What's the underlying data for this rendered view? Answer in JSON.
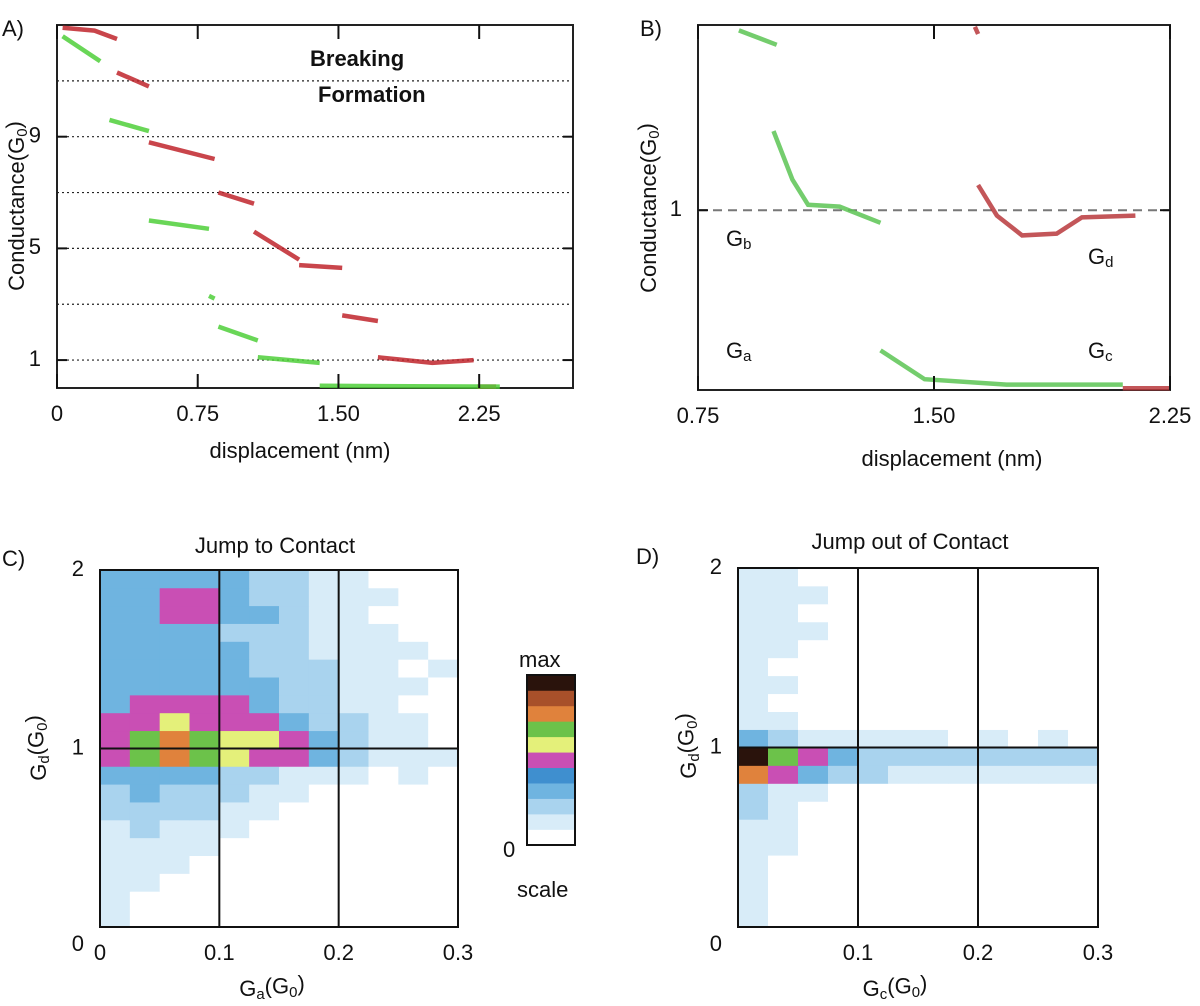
{
  "chart_data": [
    {
      "type": "line",
      "panel": "A)",
      "xlabel": "displacement (nm)",
      "ylabel": [
        "Conductance(G",
        "0",
        ")"
      ],
      "xlim": [
        0,
        2.75
      ],
      "ylim": [
        0,
        13
      ],
      "xticks": [
        0,
        0.75,
        {
          "value": 1.5,
          "label": "1.50"
        },
        2.25
      ],
      "yticks": [
        1,
        5,
        9
      ],
      "grid_lines": [
        1,
        3,
        5,
        7,
        9,
        11
      ],
      "grid_style": "dotted",
      "legend": true,
      "series": [
        {
          "name": "Breaking",
          "color": "#c0252b",
          "x": [
            0.03,
            0.2,
            0.32,
            null,
            0.32,
            0.49,
            null,
            0.49,
            0.84,
            null,
            0.86,
            1.05,
            null,
            1.05,
            1.29,
            null,
            1.29,
            1.52,
            null,
            1.52,
            1.71,
            null,
            1.71,
            2.0,
            2.22,
            null,
            2.24,
            2.34
          ],
          "values": [
            12.9,
            12.8,
            12.5,
            null,
            11.3,
            10.8,
            null,
            8.8,
            8.2,
            null,
            7.0,
            6.6,
            null,
            5.6,
            4.6,
            null,
            4.4,
            4.3,
            null,
            2.6,
            2.4,
            null,
            1.1,
            0.9,
            1.0,
            null,
            0.05,
            0.05
          ]
        },
        {
          "name": "Formation",
          "color": "#4fcf3a",
          "x": [
            0.03,
            0.23,
            null,
            0.28,
            0.49,
            null,
            0.49,
            0.81,
            null,
            0.81,
            0.84,
            null,
            0.86,
            1.07,
            null,
            1.07,
            1.4,
            null,
            1.4,
            2.36
          ],
          "values": [
            12.6,
            11.7,
            null,
            9.6,
            9.2,
            null,
            6.0,
            5.7,
            null,
            3.3,
            3.2,
            null,
            2.2,
            1.7,
            null,
            1.1,
            0.9,
            null,
            0.08,
            0.05
          ]
        }
      ]
    },
    {
      "type": "line",
      "panel": "B)",
      "xlabel": "displacement (nm)",
      "ylabel": [
        "Conductance(G",
        "0",
        ")"
      ],
      "xlim": [
        0.75,
        2.25
      ],
      "ylim": [
        0,
        2.03
      ],
      "xticks": [
        0.75,
        {
          "value": 1.5,
          "label": "1.50"
        },
        2.25
      ],
      "yticks": [
        1
      ],
      "grid_lines": [
        1
      ],
      "grid_style": "dashed",
      "legend": false,
      "annotations": [
        [
          "G",
          "b"
        ],
        [
          "G",
          "a"
        ],
        [
          "G",
          "d"
        ],
        [
          "G",
          "c"
        ]
      ],
      "series": [
        {
          "color": "#5cc453",
          "x": [
            0.88,
            1.0,
            null,
            0.99,
            1.05,
            1.1,
            1.2,
            1.33,
            null,
            1.33,
            1.47,
            1.73,
            2.1
          ],
          "values": [
            2.0,
            1.92,
            null,
            1.44,
            1.17,
            1.03,
            1.02,
            0.93,
            null,
            0.22,
            0.06,
            0.03,
            0.03
          ]
        },
        {
          "color": "#b8383c",
          "x": [
            1.63,
            1.64,
            null,
            1.64,
            1.7,
            1.78,
            1.89,
            1.97,
            2.14,
            null,
            2.1,
            2.25
          ],
          "values": [
            2.02,
            1.98,
            null,
            1.14,
            0.97,
            0.86,
            0.87,
            0.96,
            0.97,
            null,
            0.01,
            0.01
          ]
        }
      ]
    },
    {
      "type": "heatmap",
      "panel": "C)",
      "title": "Jump to Contact",
      "title_color": "#2b8c1b",
      "xlabel": [
        "G",
        "a",
        "(G",
        "0",
        ")"
      ],
      "ylabel": [
        "G",
        "d",
        "(G",
        "0",
        ")"
      ],
      "xlim": [
        0,
        0.3
      ],
      "ylim": [
        0,
        2
      ],
      "xticks": [
        0,
        0.1,
        0.2,
        0.3
      ],
      "yticks": [
        0,
        1,
        2
      ],
      "x_bins": [
        0,
        0.025,
        0.05,
        0.075,
        0.1,
        0.125,
        0.15,
        0.175,
        0.2,
        0.225,
        0.25,
        0.275,
        0.3
      ],
      "y_bins": [
        0,
        0.1,
        0.2,
        0.3,
        0.4,
        0.5,
        0.6,
        0.7,
        0.8,
        0.9,
        1.0,
        1.1,
        1.2,
        1.3,
        1.4,
        1.5,
        1.6,
        1.7,
        1.8,
        1.9,
        2.0
      ],
      "z": [
        [
          1,
          0,
          0,
          0,
          0,
          0,
          0,
          0,
          0,
          0,
          0,
          0
        ],
        [
          1,
          0,
          0,
          0,
          0,
          0,
          0,
          0,
          0,
          0,
          0,
          0
        ],
        [
          1,
          1,
          0,
          0,
          0,
          0,
          0,
          0,
          0,
          0,
          0,
          0
        ],
        [
          1,
          1,
          1,
          0,
          0,
          0,
          0,
          0,
          0,
          0,
          0,
          0
        ],
        [
          1,
          1,
          1,
          1,
          0,
          0,
          0,
          0,
          0,
          0,
          0,
          0
        ],
        [
          1,
          2,
          1,
          1,
          1,
          0,
          0,
          0,
          0,
          0,
          0,
          0
        ],
        [
          2,
          2,
          2,
          2,
          1,
          1,
          0,
          0,
          0,
          0,
          0,
          0
        ],
        [
          2,
          3,
          2,
          2,
          2,
          1,
          1,
          0,
          0,
          0,
          0,
          0
        ],
        [
          3,
          3,
          3,
          3,
          2,
          2,
          1,
          1,
          1,
          0,
          1,
          0
        ],
        [
          5,
          7,
          8,
          7,
          6,
          5,
          5,
          3,
          2,
          1,
          1,
          1
        ],
        [
          5,
          7,
          8,
          7,
          6,
          6,
          5,
          3,
          2,
          1,
          1,
          0
        ],
        [
          5,
          5,
          6,
          5,
          5,
          5,
          3,
          2,
          2,
          1,
          1,
          0
        ],
        [
          3,
          5,
          5,
          5,
          5,
          3,
          2,
          2,
          1,
          1,
          0,
          0
        ],
        [
          3,
          3,
          3,
          3,
          3,
          3,
          2,
          2,
          1,
          1,
          1,
          0
        ],
        [
          3,
          3,
          3,
          3,
          3,
          2,
          2,
          2,
          1,
          1,
          0,
          1
        ],
        [
          3,
          3,
          3,
          3,
          3,
          2,
          2,
          1,
          1,
          1,
          1,
          0
        ],
        [
          3,
          3,
          3,
          3,
          2,
          2,
          2,
          1,
          1,
          1,
          0,
          0
        ],
        [
          3,
          3,
          5,
          5,
          3,
          3,
          2,
          1,
          1,
          0,
          0,
          0
        ],
        [
          3,
          3,
          5,
          5,
          3,
          2,
          2,
          1,
          1,
          1,
          0,
          0
        ],
        [
          3,
          3,
          3,
          3,
          3,
          2,
          2,
          1,
          1,
          0,
          0,
          0
        ]
      ],
      "zlim": [
        0,
        {
          "value": 10,
          "label": "max"
        }
      ],
      "colorbar_label": "scale",
      "colorscale": [
        "#ffffff",
        "#d8ecf8",
        "#a9d3ee",
        "#6fb4e0",
        "#3f8fcf",
        "#c94fb4",
        "#e4f07a",
        "#6cc24a",
        "#e0823c",
        "#a8502a",
        "#2a130c"
      ]
    },
    {
      "type": "heatmap",
      "panel": "D)",
      "title": "Jump out of Contact",
      "title_color": "#e8201a",
      "xlabel": [
        "G",
        "c",
        "(G",
        "0",
        ")"
      ],
      "ylabel": [
        "G",
        "d",
        "(G",
        "0",
        ")"
      ],
      "xlim": [
        0,
        0.3
      ],
      "ylim": [
        0,
        2
      ],
      "xticks": [
        0.1,
        0.2,
        0.3
      ],
      "yticks": [
        0,
        1,
        2
      ],
      "x_bins": [
        0,
        0.025,
        0.05,
        0.075,
        0.1,
        0.125,
        0.15,
        0.175,
        0.2,
        0.225,
        0.25,
        0.275,
        0.3
      ],
      "y_bins": [
        0,
        0.1,
        0.2,
        0.3,
        0.4,
        0.5,
        0.6,
        0.7,
        0.8,
        0.9,
        1.0,
        1.1,
        1.2,
        1.3,
        1.4,
        1.5,
        1.6,
        1.7,
        1.8,
        1.9,
        2.0
      ],
      "z": [
        [
          1,
          0,
          0,
          0,
          0,
          0,
          0,
          0,
          0,
          0,
          0,
          0
        ],
        [
          1,
          0,
          0,
          0,
          0,
          0,
          0,
          0,
          0,
          0,
          0,
          0
        ],
        [
          1,
          0,
          0,
          0,
          0,
          0,
          0,
          0,
          0,
          0,
          0,
          0
        ],
        [
          1,
          0,
          0,
          0,
          0,
          0,
          0,
          0,
          0,
          0,
          0,
          0
        ],
        [
          1,
          1,
          0,
          0,
          0,
          0,
          0,
          0,
          0,
          0,
          0,
          0
        ],
        [
          1,
          1,
          0,
          0,
          0,
          0,
          0,
          0,
          0,
          0,
          0,
          0
        ],
        [
          2,
          1,
          0,
          0,
          0,
          0,
          0,
          0,
          0,
          0,
          0,
          0
        ],
        [
          2,
          1,
          1,
          0,
          0,
          0,
          0,
          0,
          0,
          0,
          0,
          0
        ],
        [
          8,
          5,
          3,
          2,
          2,
          1,
          1,
          1,
          1,
          1,
          1,
          1
        ],
        [
          10,
          7,
          5,
          3,
          2,
          2,
          2,
          2,
          2,
          2,
          2,
          2
        ],
        [
          3,
          2,
          1,
          1,
          1,
          1,
          1,
          0,
          1,
          0,
          1,
          0
        ],
        [
          1,
          1,
          0,
          0,
          0,
          0,
          0,
          0,
          0,
          0,
          0,
          0
        ],
        [
          1,
          0,
          0,
          0,
          0,
          0,
          0,
          0,
          0,
          0,
          0,
          0
        ],
        [
          1,
          1,
          0,
          0,
          0,
          0,
          0,
          0,
          0,
          0,
          0,
          0
        ],
        [
          1,
          0,
          0,
          0,
          0,
          0,
          0,
          0,
          0,
          0,
          0,
          0
        ],
        [
          1,
          1,
          0,
          0,
          0,
          0,
          0,
          0,
          0,
          0,
          0,
          0
        ],
        [
          1,
          1,
          1,
          0,
          0,
          0,
          0,
          0,
          0,
          0,
          0,
          0
        ],
        [
          1,
          1,
          0,
          0,
          0,
          0,
          0,
          0,
          0,
          0,
          0,
          0
        ],
        [
          1,
          1,
          1,
          0,
          0,
          0,
          0,
          0,
          0,
          0,
          0,
          0
        ],
        [
          1,
          1,
          0,
          0,
          0,
          0,
          0,
          0,
          0,
          0,
          0,
          0
        ]
      ],
      "colorscale": [
        "#ffffff",
        "#d8ecf8",
        "#a9d3ee",
        "#6fb4e0",
        "#3f8fcf",
        "#c94fb4",
        "#e4f07a",
        "#6cc24a",
        "#e0823c",
        "#a8502a",
        "#2a130c"
      ]
    }
  ]
}
